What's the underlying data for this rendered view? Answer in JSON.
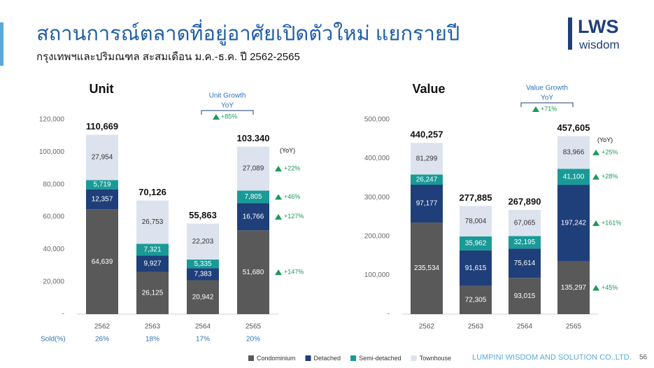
{
  "header": {
    "title": "สถานการณ์ตลาดที่อยู่อาศัยเปิดตัวใหม่ แยกรายปี",
    "subtitle": "กรุงเทพฯและปริมณฑล สะสมเดือน ม.ค.-ธ.ค. ปี 2562-2565",
    "logo_main": "LWS",
    "logo_sub": "wisdom"
  },
  "footer": {
    "company": "LUMPINI WISDOM AND SOLUTION CO.,LTD.",
    "page": "56"
  },
  "chart_data": [
    {
      "type": "bar",
      "stacked": true,
      "title": "Unit",
      "categories": [
        "2562",
        "2563",
        "2564",
        "2565"
      ],
      "series": [
        {
          "name": "Condominium",
          "color": "#595959",
          "values": [
            64639,
            26125,
            20942,
            51680
          ],
          "value_labels": [
            "64,639",
            "26,125",
            "20,942",
            "51,680"
          ]
        },
        {
          "name": "Detached",
          "color": "#1f3f7a",
          "values": [
            12357,
            9927,
            7383,
            16766
          ],
          "value_labels": [
            "12,357",
            "9,927",
            "7,383",
            "16,766"
          ]
        },
        {
          "name": "Semi-detached",
          "color": "#1a9a96",
          "values": [
            5719,
            7321,
            5335,
            7805
          ],
          "value_labels": [
            "5,719",
            "7,321",
            "5,335",
            "7,805"
          ]
        },
        {
          "name": "Townhouse",
          "color": "#dce3ee",
          "values": [
            27954,
            26753,
            22203,
            27089
          ],
          "value_labels": [
            "27,954",
            "26,753",
            "22,203",
            "27,089"
          ]
        }
      ],
      "totals": {
        "values": [
          110669,
          70126,
          55863,
          103340
        ],
        "value_labels": [
          "110,669",
          "70,126",
          "55,863",
          "103.340"
        ]
      },
      "ylim": [
        0,
        120000
      ],
      "yticks": [
        {
          "value": 0,
          "label": "-"
        },
        {
          "value": 20000,
          "label": "20,000"
        },
        {
          "value": 40000,
          "label": "40,000"
        },
        {
          "value": 60000,
          "label": "60,000"
        },
        {
          "value": 80000,
          "label": "80,000"
        },
        {
          "value": 100000,
          "label": "100,000"
        },
        {
          "value": 120000,
          "label": "120,000"
        }
      ],
      "grid": false,
      "yoy": {
        "label": "(YoY)",
        "values": [
          147,
          127,
          46,
          22
        ],
        "value_labels": [
          "+147%",
          "+127%",
          "+46%",
          "+22%"
        ]
      },
      "growth": {
        "title": "Unit Growth",
        "subtitle": "YoY",
        "value": 85,
        "value_label": "+85%"
      },
      "sold": {
        "label": "Sold(%)",
        "values": [
          26,
          18,
          17,
          20
        ],
        "value_labels": [
          "26%",
          "18%",
          "17%",
          "20%"
        ]
      }
    },
    {
      "type": "bar",
      "stacked": true,
      "title": "Value",
      "categories": [
        "2562",
        "2563",
        "2564",
        "2565"
      ],
      "series": [
        {
          "name": "Condominium",
          "color": "#595959",
          "values": [
            235534,
            72305,
            93015,
            135297
          ],
          "value_labels": [
            "235,534",
            "72,305",
            "93,015",
            "135,297"
          ]
        },
        {
          "name": "Detached",
          "color": "#1f3f7a",
          "values": [
            97177,
            91615,
            75614,
            197242
          ],
          "value_labels": [
            "97,177",
            "91,615",
            "75,614",
            "197,242"
          ]
        },
        {
          "name": "Semi-detached",
          "color": "#1a9a96",
          "values": [
            26247,
            35962,
            32195,
            41100
          ],
          "value_labels": [
            "26,247",
            "35,962",
            "32,195",
            "41,100"
          ]
        },
        {
          "name": "Townhouse",
          "color": "#dce3ee",
          "values": [
            81299,
            78004,
            67065,
            83966
          ],
          "value_labels": [
            "81,299",
            "78,004",
            "67,065",
            "83,966"
          ]
        }
      ],
      "totals": {
        "values": [
          440257,
          277885,
          267890,
          457605
        ],
        "value_labels": [
          "440,257",
          "277,885",
          "267,890",
          "457,605"
        ]
      },
      "ylim": [
        0,
        500000
      ],
      "yticks": [
        {
          "value": 0,
          "label": "-"
        },
        {
          "value": 100000,
          "label": "100,000"
        },
        {
          "value": 200000,
          "label": "200,000"
        },
        {
          "value": 300000,
          "label": "300,000"
        },
        {
          "value": 400000,
          "label": "400,000"
        },
        {
          "value": 500000,
          "label": "500,000"
        }
      ],
      "grid": false,
      "yoy": {
        "label": "(YoY)",
        "values": [
          45,
          161,
          28,
          25
        ],
        "value_labels": [
          "+45%",
          "+161%",
          "+28%",
          "+25%"
        ]
      },
      "growth": {
        "title": "Value Growth",
        "subtitle": "YoY",
        "value": 71,
        "value_label": "+71%"
      }
    }
  ]
}
